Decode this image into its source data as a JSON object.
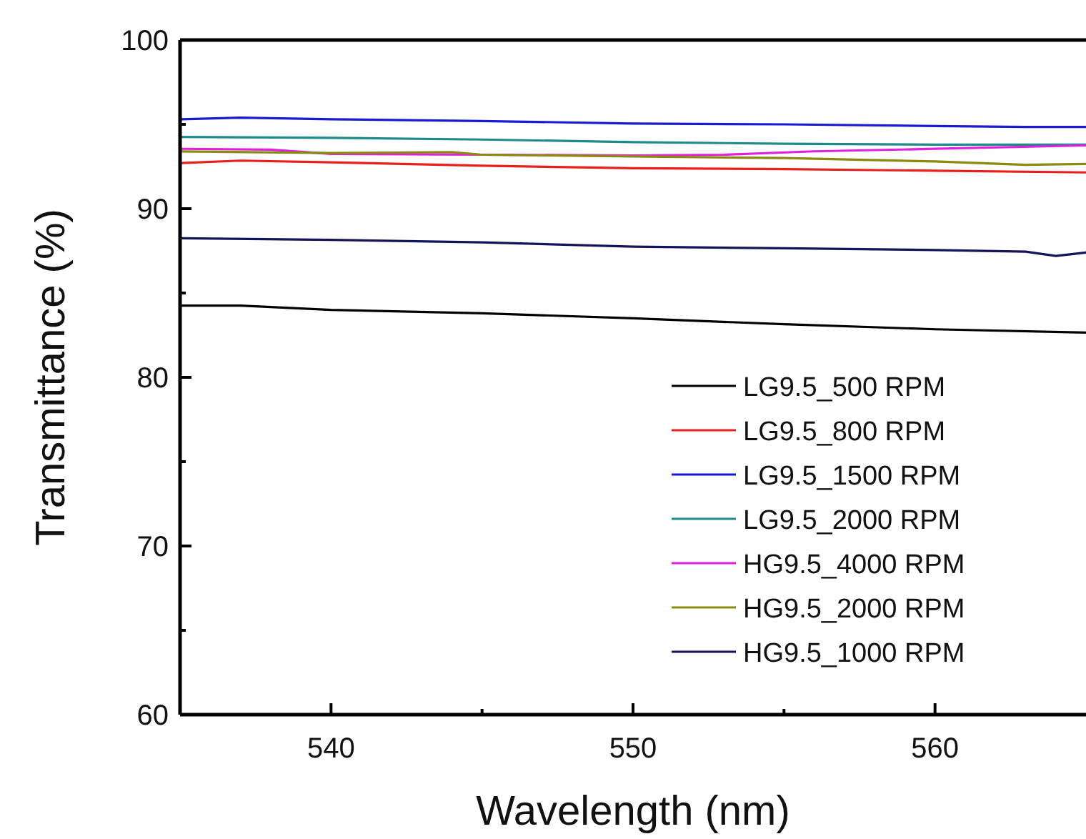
{
  "chart_data": {
    "type": "line",
    "xlabel": "Wavelength (nm)",
    "ylabel": "Transmittance (%)",
    "xlim": [
      535,
      565
    ],
    "ylim": [
      60,
      100
    ],
    "xticks": [
      540,
      {
        "value": 545,
        "label": null
      },
      550,
      {
        "value": 555,
        "label": null
      },
      560
    ],
    "yticks": [
      60,
      {
        "value": 65,
        "label": null
      },
      70,
      {
        "value": 75,
        "label": null
      },
      80,
      {
        "value": 85,
        "label": null
      },
      90,
      {
        "value": 95,
        "label": null
      },
      100
    ],
    "legend": "bottom right",
    "grid": false,
    "line_style": "solid",
    "marker": "none",
    "series": [
      {
        "name": "LG9.5_500 RPM",
        "color": "#000000",
        "x": [
          535,
          537,
          540,
          545,
          550,
          555,
          560,
          565
        ],
        "values": [
          84.25,
          84.25,
          84.0,
          83.8,
          83.5,
          83.15,
          82.85,
          82.65
        ]
      },
      {
        "name": "LG9.5_800 RPM",
        "color": "#e8201c",
        "x": [
          535,
          537,
          540,
          545,
          550,
          555,
          560,
          565
        ],
        "values": [
          92.7,
          92.85,
          92.75,
          92.55,
          92.4,
          92.35,
          92.25,
          92.15
        ]
      },
      {
        "name": "LG9.5_1500 RPM",
        "color": "#1a1ad0",
        "x": [
          535,
          537,
          540,
          545,
          550,
          555,
          560,
          563,
          565
        ],
        "values": [
          95.3,
          95.4,
          95.3,
          95.2,
          95.05,
          95.0,
          94.9,
          94.85,
          94.85
        ]
      },
      {
        "name": "LG9.5_2000 RPM",
        "color": "#1e8a8a",
        "x": [
          535,
          540,
          545,
          550,
          555,
          560,
          565
        ],
        "values": [
          94.25,
          94.2,
          94.1,
          93.95,
          93.85,
          93.8,
          93.8
        ]
      },
      {
        "name": "HG9.5_4000 RPM",
        "color": "#e020e0",
        "x": [
          535,
          538,
          540,
          545,
          550,
          553,
          556,
          560,
          565
        ],
        "values": [
          93.55,
          93.5,
          93.25,
          93.2,
          93.15,
          93.2,
          93.4,
          93.55,
          93.75
        ]
      },
      {
        "name": "HG9.5_2000 RPM",
        "color": "#8a8a10",
        "x": [
          535,
          540,
          544,
          545,
          550,
          555,
          560,
          563,
          565
        ],
        "values": [
          93.4,
          93.3,
          93.35,
          93.2,
          93.1,
          93.0,
          92.8,
          92.6,
          92.65
        ]
      },
      {
        "name": "HG9.5_1000 RPM",
        "color": "#14145a",
        "x": [
          535,
          540,
          545,
          550,
          555,
          560,
          563,
          564,
          565
        ],
        "values": [
          88.25,
          88.15,
          88.0,
          87.75,
          87.65,
          87.55,
          87.45,
          87.2,
          87.4
        ]
      }
    ]
  }
}
